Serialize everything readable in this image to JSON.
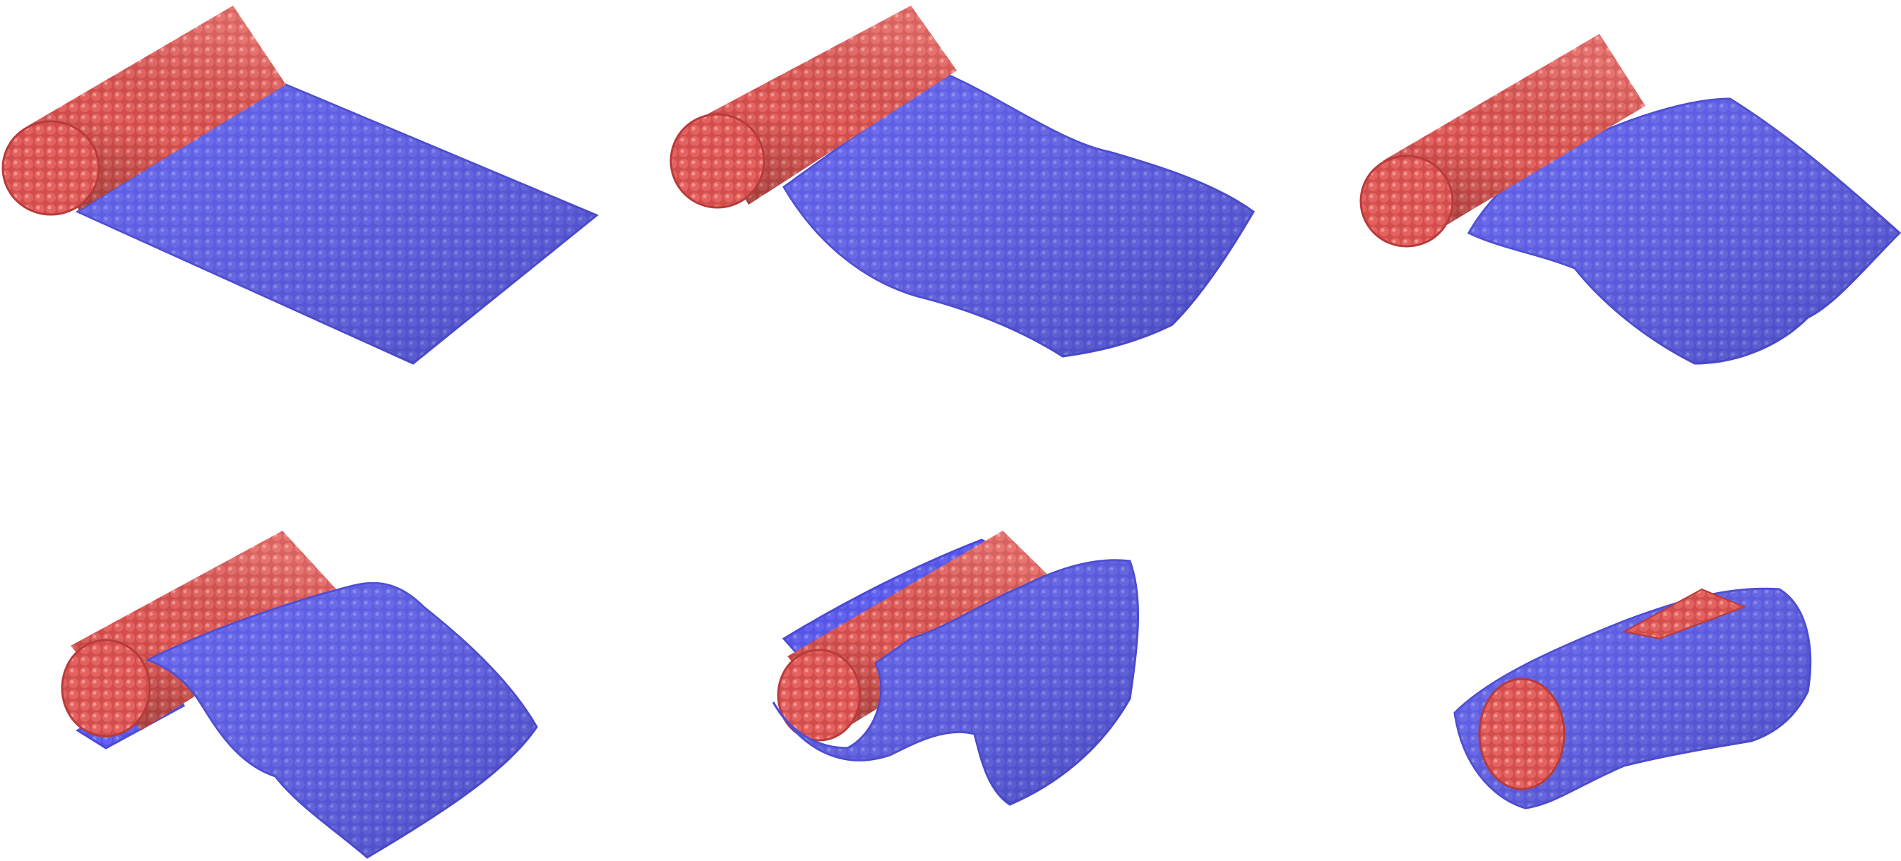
{
  "figure": {
    "layout": {
      "rows": 2,
      "cols": 3
    },
    "colors": {
      "background": "#ffffff",
      "cylinder": "#e05a57",
      "cylinder_shade": "#b83a3a",
      "cylinder_light": "#f08a86",
      "sheet": "#5555e6",
      "sheet_shade": "#3a3ab8",
      "sheet_light": "#8585f2"
    },
    "panels": [
      {
        "id": "frame-1",
        "stage": "initial-flat-sheet"
      },
      {
        "id": "frame-2",
        "stage": "sheet-wrinkling"
      },
      {
        "id": "frame-3",
        "stage": "sheet-sagging"
      },
      {
        "id": "frame-4",
        "stage": "sheet-folding-over-cylinder"
      },
      {
        "id": "frame-5",
        "stage": "sheet-wrapping-cylinder"
      },
      {
        "id": "frame-6",
        "stage": "cylinder-fully-wrapped"
      }
    ]
  }
}
